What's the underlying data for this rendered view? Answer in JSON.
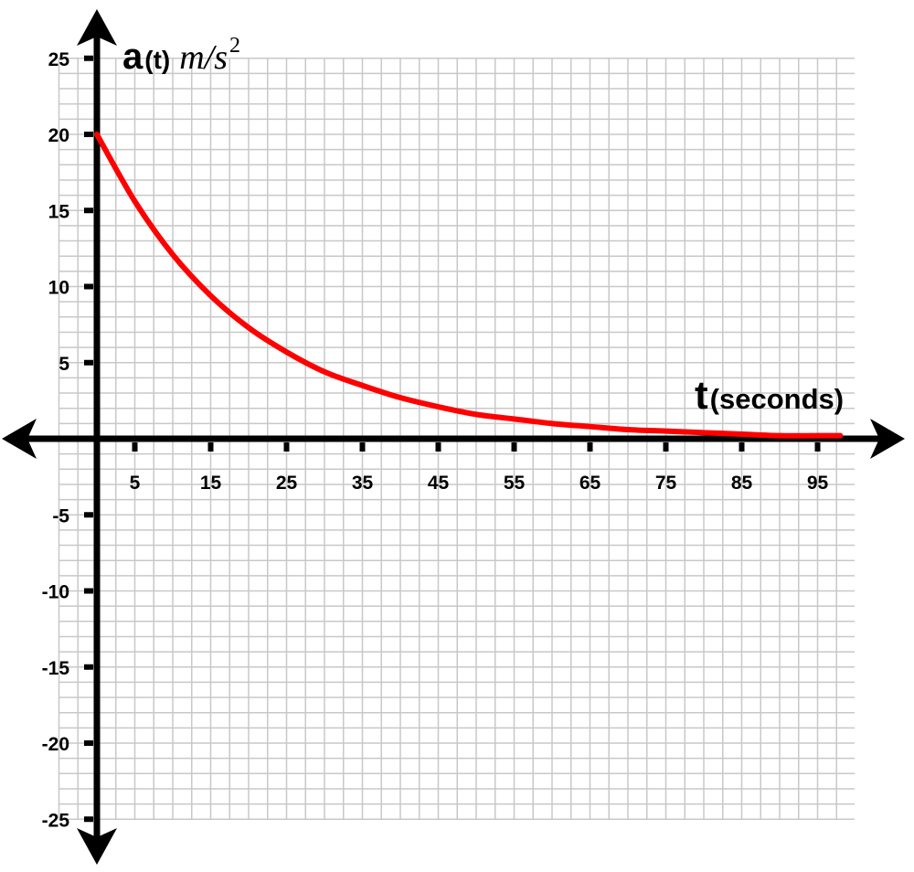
{
  "chart_data": {
    "type": "line",
    "title": "",
    "ylabel": {
      "main": "a",
      "paren": "(t)",
      "unit": "m/s",
      "exponent": "2"
    },
    "xlabel": {
      "main": "t",
      "paren": "(seconds)"
    },
    "xlim": [
      0,
      100
    ],
    "ylim": [
      -25,
      25
    ],
    "x_ticks": [
      5,
      15,
      25,
      35,
      45,
      55,
      65,
      75,
      85,
      95
    ],
    "x_tick_labels": [
      "5",
      "15",
      "25",
      "35",
      "45",
      "55",
      "65",
      "75",
      "85",
      "95"
    ],
    "y_ticks": [
      25,
      20,
      15,
      10,
      5,
      -5,
      -10,
      -15,
      -20,
      -25
    ],
    "y_tick_labels": [
      "25",
      "20",
      "15",
      "10",
      "5",
      "-5",
      "-10",
      "-15",
      "-20",
      "-25"
    ],
    "grid": true,
    "grid_minor_x_step": 2.5,
    "grid_minor_y_step": 1,
    "series": [
      {
        "color": "#ff0000",
        "x": [
          0,
          5,
          10,
          15,
          20,
          25,
          30,
          35,
          40,
          45,
          50,
          55,
          60,
          65,
          70,
          75,
          80,
          85,
          90,
          95,
          98
        ],
        "y": [
          20,
          15.6,
          12.1,
          9.4,
          7.3,
          5.7,
          4.4,
          3.5,
          2.7,
          2.1,
          1.6,
          1.3,
          1.0,
          0.8,
          0.6,
          0.5,
          0.4,
          0.3,
          0.2,
          0.2,
          0.2
        ]
      }
    ]
  }
}
